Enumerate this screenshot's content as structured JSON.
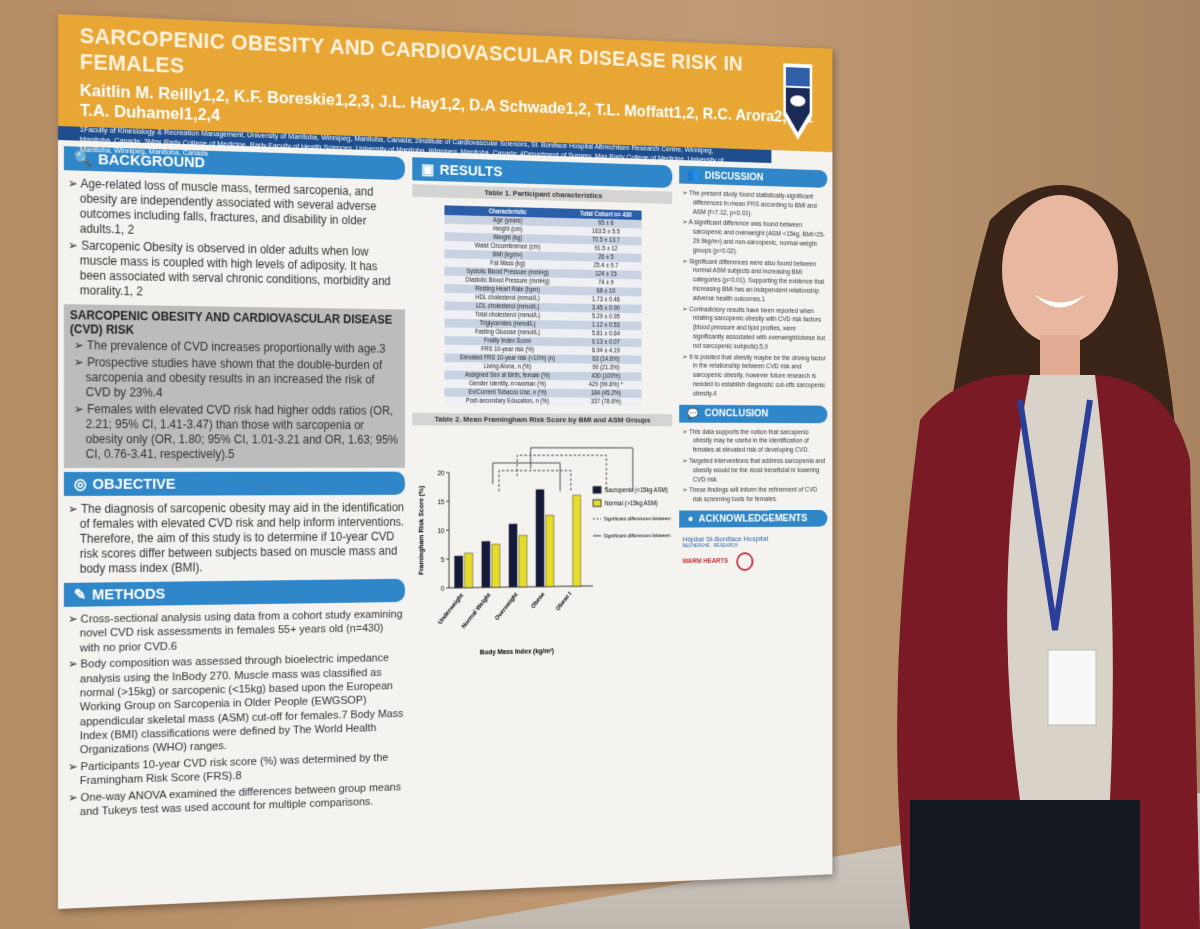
{
  "poster": {
    "title": "SARCOPENIC OBESITY AND CARDIOVASCULAR DISEASE RISK IN FEMALES",
    "authors": "Kaitlin M. Reilly1,2, K.F. Boreskie1,2,3, J.L. Hay1,2, D.A Schwade1,2, T.L. Moffatt1,2, R.C. Arora2,4, & T.A. Duhamel1,2,4",
    "affiliations": "1Faculty of Kinesiology & Recreation Management, University of Manitoba, Winnipeg, Manitoba, Canada; 2Institute of Cardiovascular Sciences, St. Boniface Hospital Albrechtsen Research Centre, Winnipeg, Manitoba, Canada; 3Max Rady College of Medicine, Rady Faculty of Health Sciences, University of Manitoba, Winnipeg, Manitoba, Canada; 4Department of Surgery, Max Rady College of Medicine, University of Manitoba, Winnipeg, Manitoba, Canada",
    "background": {
      "heading": "BACKGROUND",
      "items": [
        "Age-related loss of muscle mass, termed sarcopenia, and obesity are independently associated with several adverse outcomes including falls, fractures, and disability in older adults.1, 2",
        "Sarcopenic Obesity is observed in older adults when low muscle mass is coupled with high levels of adiposity. It has been associated with serval chronic conditions, morbidity and morality.1, 2"
      ]
    },
    "cvd": {
      "heading": "SARCOPENIC OBESITY AND CARDIOVASCULAR DISEASE (CVD) RISK",
      "items": [
        "The prevalence of CVD increases proportionally with age.3",
        "Prospective studies have shown that the double-burden of sarcopenia and obesity results in an increased the risk of CVD by 23%.4",
        "Females with elevated CVD risk had higher odds ratios (OR, 2.21; 95% CI, 1.41-3.47) than those with sarcopenia or obesity only (OR, 1.80; 95% CI, 1.01-3.21 and OR, 1.63; 95% CI, 0.76-3.41, respectively).5"
      ]
    },
    "objective": {
      "heading": "OBJECTIVE",
      "items": [
        "The diagnosis of sarcopenic obesity may aid in the identification of females with elevated CVD risk and help inform interventions. Therefore, the aim of this study is to determine if 10-year CVD risk scores differ between subjects based on muscle mass and body mass index (BMI)."
      ]
    },
    "methods": {
      "heading": "METHODS",
      "items": [
        "Cross-sectional analysis using data from a cohort study examining novel CVD risk assessments in females 55+ years old (n=430) with no prior CVD.6",
        "Body composition was assessed through bioelectric impedance analysis using the InBody 270. Muscle mass was classified as normal (>15kg) or sarcopenic (<15kg) based upon the European Working Group on Sarcopenia in Older People (EWGSOP) appendicular skeletal mass (ASM) cut-off for females.7 Body Mass Index (BMI) classifications were defined by The World Health Organizations (WHO) ranges.",
        "Participants 10-year CVD risk score (%) was determined by the Framingham Risk Score (FRS).8",
        "One-way ANOVA examined the differences between group means and Tukeys test was used account for multiple comparisons."
      ]
    },
    "results": {
      "heading": "RESULTS",
      "table1_caption": "Table 1. Participant characteristics",
      "table1_headers": [
        "Characteristic",
        "Total Cohort n= 430"
      ],
      "table1_rows": [
        [
          "Age (years)",
          "65 ± 6"
        ],
        [
          "Height (cm)",
          "163.5 ± 5.5"
        ],
        [
          "Weight (kg)",
          "70.5 ± 13.7"
        ],
        [
          "Waist Circumference (cm)",
          "91.5 ± 12"
        ],
        [
          "BMI (kg/m²)",
          "26 ± 5"
        ],
        [
          "Fat Mass (kg)",
          "25.4 ± 9.7"
        ],
        [
          "Systolic Blood Pressure (mmHg)",
          "124 ± 15"
        ],
        [
          "Diastolic Blood Pressure (mmHg)",
          "74 ± 9"
        ],
        [
          "Resting Heart Rate (bpm)",
          "68 ± 10"
        ],
        [
          "HDL cholesterol (mmol/L)",
          "1.73 ± 0.46"
        ],
        [
          "LDL cholesterol (mmol/L)",
          "3.45 ± 0.90"
        ],
        [
          "Total cholesterol (mmol/L)",
          "5.29 ± 0.95"
        ],
        [
          "Triglycerides (mmol/L)",
          "1.12 ± 0.53"
        ],
        [
          "Fasting Glucose (mmol/L)",
          "5.81 ± 0.64"
        ],
        [
          "Frailty Index Score",
          "0.13 ± 0.07"
        ],
        [
          "FRS 10-year risk (%)",
          "6.94 ± 4.19"
        ],
        [
          "Elevated FRS 10-year risk (>10%) (n)",
          "63 (14.6%)"
        ],
        [
          "Living Alone, n (%)",
          "90 (21.3%)"
        ],
        [
          "Assigned Sex at Birth, female (%)",
          "430 (100%)"
        ],
        [
          "Gender Identity, n=woman (%)",
          "429 (99.8%) *"
        ],
        [
          "Ex/Current Tobacco Use, n (%)",
          "184 (45.2%)"
        ],
        [
          "Post-secondary Education, n (%)",
          "337 (78.6%)"
        ]
      ],
      "table2_caption": "Table 2. Mean Framingham Risk Score by BMI and ASM Groups"
    },
    "discussion": {
      "heading": "DISCUSSION",
      "items": [
        "The present study found statistically-significant differences in mean FRS according to BMI and ASM (f=7.12, p<0.01).",
        "A significant difference was found between sarcopenic and overweight (ASM <15kg, BMI=25-29.9kg/m²) and non-sarcopenic, normal-weight groups (p=0.02).",
        "Significant differences were also found between normal ASM subjects and increasing BMI categories (p=0.01). Supporting the evidence that increasing BMI has an independent relationship adverse health outcomes.1",
        "Contradictory results have been reported when relating sarcopenic obesity with CVD risk factors (blood pressure and lipid profiles, were significantly associated with overweight/obese but not sarcopenic subjects).5,9",
        "It is posited that obesity maybe be the driving factor in the relationship between CVD risk and sarcopenic obesity, however future research is needed to establish diagnostic cut-offs sarcopenic obesity.4"
      ]
    },
    "conclusion": {
      "heading": "CONCLUSION",
      "items": [
        "This data supports the notion that sarcopenic obesity may be useful in the identification of females at elevated risk of developing CVD.",
        "Targeted interventions that address sarcopenia and obesity would be the most beneficial in lowering CVD risk.",
        "These findings will inform the refinement of CVD risk screening tools for females."
      ]
    },
    "acknowledgements": {
      "heading": "ACKNOWLEDGEMENTS",
      "sponsor": "Hôpital St-Boniface Hospital",
      "sponsor_sub": "RECHERCHE · RESEARCH",
      "sponsor2": "WARM HEARTS"
    }
  },
  "chart_data": {
    "type": "bar",
    "categories": [
      "Underweight",
      "Normal Weight",
      "Overweight",
      "Obese",
      "Obese I"
    ],
    "series": [
      {
        "name": "Sacropenic (<15kg ASM)",
        "values": [
          5.5,
          8,
          11,
          17,
          null
        ],
        "color": "#14193a"
      },
      {
        "name": "Normal (>15kg ASM)",
        "values": [
          6,
          7.5,
          9,
          12.5,
          16
        ],
        "color": "#e6dc2a"
      }
    ],
    "legend_extra": [
      "Significant differences between normal (>15kg) ASM",
      "Significant differences between sarcopenic and normal ASM"
    ],
    "xlabel": "Body Mass Index (kg/m²)",
    "ylabel": "Framingham Risk Score (%)",
    "ylim": [
      0,
      20
    ],
    "yticks": [
      0,
      5,
      10,
      15,
      20
    ],
    "legend": "right"
  },
  "colors": {
    "header": "#e8a634",
    "section": "#2f86c8",
    "navy": "#1e4e8e",
    "cardigan": "#7a1a24"
  }
}
